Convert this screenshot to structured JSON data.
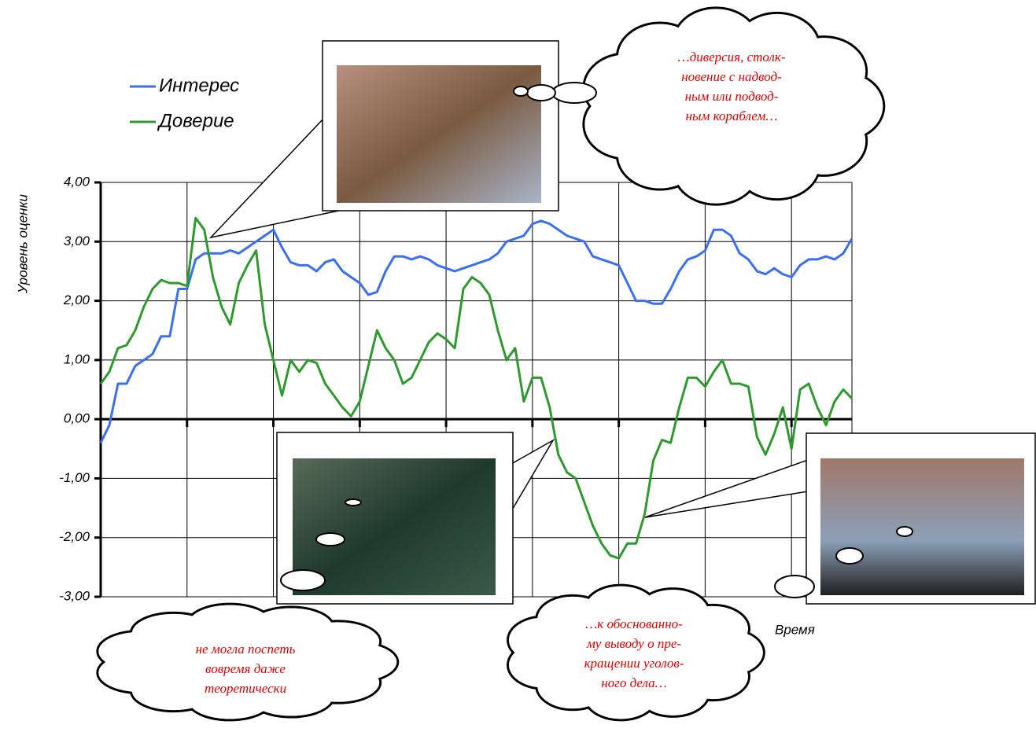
{
  "chart_data": {
    "type": "line",
    "ylabel": "Уровень оценки",
    "xlabel": "Время",
    "x": [
      0,
      1,
      2,
      3,
      4,
      5,
      6,
      7,
      8,
      9,
      10,
      11,
      12,
      13,
      14,
      15,
      16,
      17,
      18,
      19,
      20,
      21,
      22,
      23,
      24,
      25,
      26,
      27,
      28,
      29,
      30,
      31,
      32,
      33,
      34,
      35,
      36,
      37,
      38,
      39,
      40,
      41,
      42,
      43,
      44,
      45,
      46,
      47,
      48,
      49,
      50,
      51,
      52,
      53,
      54,
      55,
      56,
      57,
      58,
      59,
      60,
      61,
      62,
      63,
      64,
      65,
      66,
      67,
      68,
      69,
      70,
      71,
      72,
      73,
      74,
      75,
      76,
      77,
      78,
      79,
      80,
      81,
      82,
      83,
      84,
      85,
      86,
      87
    ],
    "series": [
      {
        "name": "Интерес",
        "color": "#3a6ff0",
        "values": [
          -0.4,
          -0.1,
          0.6,
          0.6,
          0.9,
          1.0,
          1.1,
          1.4,
          1.4,
          2.2,
          2.2,
          2.7,
          2.8,
          2.8,
          2.8,
          2.85,
          2.8,
          2.9,
          3.0,
          3.1,
          3.2,
          2.9,
          2.65,
          2.6,
          2.6,
          2.5,
          2.65,
          2.7,
          2.5,
          2.4,
          2.3,
          2.1,
          2.15,
          2.5,
          2.75,
          2.75,
          2.7,
          2.75,
          2.7,
          2.6,
          2.55,
          2.5,
          2.55,
          2.6,
          2.65,
          2.7,
          2.8,
          3.0,
          3.05,
          3.1,
          3.3,
          3.35,
          3.3,
          3.2,
          3.1,
          3.05,
          3.0,
          2.75,
          2.7,
          2.65,
          2.6,
          2.3,
          2.0,
          2.0,
          1.95,
          1.95,
          2.2,
          2.5,
          2.7,
          2.75,
          2.85,
          3.2,
          3.2,
          3.1,
          2.8,
          2.7,
          2.5,
          2.45,
          2.55,
          2.45,
          2.4,
          2.6,
          2.7,
          2.7,
          2.75,
          2.7,
          2.8,
          3.05
        ]
      },
      {
        "name": "Доверие",
        "color": "#2e9a2e",
        "values": [
          0.6,
          0.8,
          1.2,
          1.25,
          1.5,
          1.9,
          2.2,
          2.35,
          2.3,
          2.3,
          2.25,
          3.4,
          3.2,
          2.4,
          1.9,
          1.6,
          2.3,
          2.6,
          2.85,
          1.6,
          1.0,
          0.4,
          1.0,
          0.8,
          1.0,
          0.95,
          0.6,
          0.4,
          0.2,
          0.05,
          0.3,
          0.9,
          1.5,
          1.2,
          1.0,
          0.6,
          0.7,
          1.0,
          1.3,
          1.45,
          1.35,
          1.2,
          2.2,
          2.4,
          2.3,
          2.1,
          1.5,
          1.0,
          1.2,
          0.3,
          0.7,
          0.7,
          0.2,
          -0.6,
          -0.9,
          -1.0,
          -1.4,
          -1.8,
          -2.1,
          -2.3,
          -2.35,
          -2.1,
          -2.1,
          -1.6,
          -0.7,
          -0.35,
          -0.4,
          0.2,
          0.7,
          0.7,
          0.55,
          0.8,
          1.0,
          0.6,
          0.6,
          0.55,
          -0.3,
          -0.6,
          -0.25,
          0.2,
          -0.5,
          0.5,
          0.6,
          0.2,
          -0.1,
          0.3,
          0.5,
          0.35
        ]
      }
    ],
    "xlim": [
      0,
      87
    ],
    "xticks": [
      10,
      20,
      30,
      40,
      50,
      60,
      70,
      80
    ],
    "ylim": [
      -3,
      4
    ],
    "yticks": [
      {
        "value": 4,
        "label": "4,00"
      },
      {
        "value": 3,
        "label": "3,00"
      },
      {
        "value": 2,
        "label": "2,00"
      },
      {
        "value": 1,
        "label": "1,00"
      },
      {
        "value": 0,
        "label": "0,00"
      },
      {
        "value": -1,
        "label": "-1,00"
      },
      {
        "value": -2,
        "label": "-2,00"
      },
      {
        "value": -3,
        "label": "-3,00"
      }
    ],
    "grid": true,
    "legend": "top-left",
    "annotations": [
      [
        "…диверсия, столк-",
        "новение с надвод-",
        "ным или подвод-",
        "ным кораблем…"
      ],
      [
        "не могла поспеть",
        "вовремя даже",
        "теоретически"
      ],
      [
        "…к обоснованно-",
        "му выводу о пре-",
        "кращении уголов-",
        "ного дела…"
      ]
    ]
  }
}
